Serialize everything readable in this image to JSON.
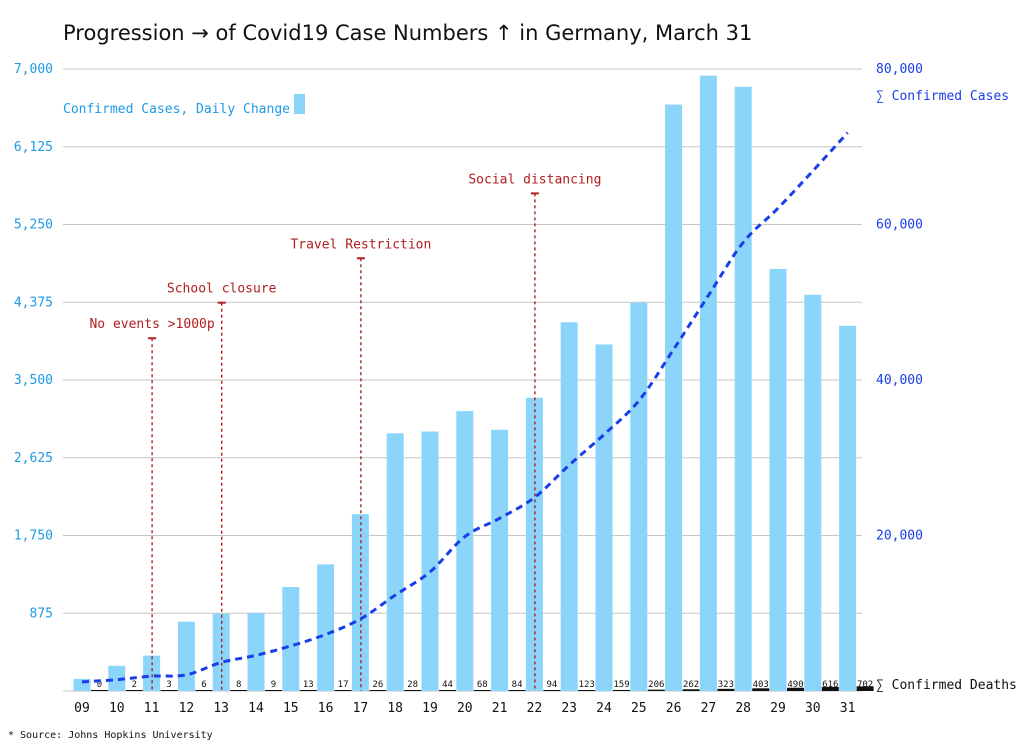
{
  "chart_data": {
    "type": "bar",
    "title": "Progression → of Covid19 Case Numbers ↑ in Germany, March 31",
    "source": "* Source: Johns Hopkins University",
    "categories": [
      "09",
      "10",
      "11",
      "12",
      "13",
      "14",
      "15",
      "16",
      "17",
      "18",
      "19",
      "20",
      "21",
      "22",
      "23",
      "24",
      "25",
      "26",
      "27",
      "28",
      "29",
      "30",
      "31"
    ],
    "left_axis": {
      "ticks": [
        "7,000",
        "6,125",
        "5,250",
        "4,375",
        "3,500",
        "2,625",
        "1,750",
        "875"
      ],
      "ylim": [
        0,
        7000
      ]
    },
    "right_axis": {
      "ticks": [
        "80,000",
        "60,000",
        "40,000",
        "20,000"
      ],
      "ylim": [
        0,
        80000
      ]
    },
    "legend": {
      "bars": "Confirmed Cases, Daily Change",
      "line": "∑ Confirmed Cases",
      "deaths": "∑ Confirmed Deaths"
    },
    "series": [
      {
        "name": "Confirmed Cases, Daily Change",
        "color": "#8cd5fa",
        "values": [
          136,
          284,
          398,
          780,
          870,
          880,
          1170,
          1425,
          1990,
          2900,
          2920,
          3150,
          2940,
          3300,
          4150,
          3900,
          4370,
          6600,
          6925,
          6800,
          4750,
          4460,
          4110
        ]
      },
      {
        "name": "∑ Confirmed Cases",
        "color": "#1a3ee8",
        "values": [
          1176,
          1457,
          1908,
          2078,
          3675,
          4585,
          5795,
          7272,
          9257,
          12327,
          15320,
          19848,
          22213,
          24873,
          29056,
          32986,
          37323,
          43938,
          50871,
          57695,
          62095,
          66885,
          71808
        ]
      },
      {
        "name": "∑ Confirmed Deaths",
        "color": "#111111",
        "values": [
          0,
          2,
          3,
          6,
          8,
          9,
          13,
          17,
          26,
          28,
          44,
          68,
          84,
          94,
          123,
          159,
          206,
          262,
          323,
          403,
          490,
          616,
          702
        ]
      }
    ],
    "annotations": [
      {
        "label": "No events >1000p",
        "category": "11",
        "level": 3970
      },
      {
        "label": "School closure",
        "category": "13",
        "level": 4370
      },
      {
        "label": "Travel Restriction",
        "category": "17",
        "level": 4870
      },
      {
        "label": "Social distancing",
        "category": "22",
        "level": 5600
      }
    ],
    "colors": {
      "bars": "#8cd5fa",
      "line": "#1a3ee8",
      "left_axis": "#1e9ae6",
      "right_axis": "#1a3ee8",
      "annotation": "#b01e1e",
      "grid": "#c6c6c6"
    },
    "grid": true,
    "legend_position": "top-left"
  }
}
